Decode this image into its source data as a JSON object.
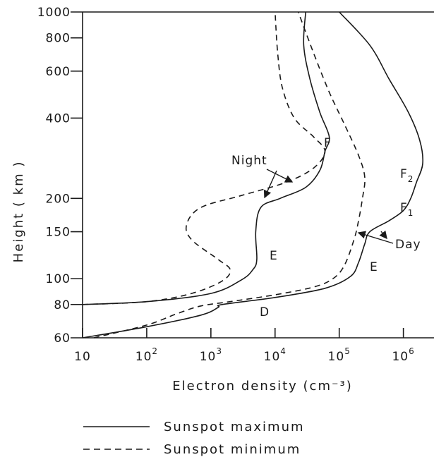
{
  "chart_data": {
    "type": "line",
    "xlabel": "Electron density (cm⁻³)",
    "ylabel": "Height ( km )",
    "xscale": "log",
    "yscale": "log",
    "xlim": [
      10,
      3000000
    ],
    "ylim": [
      60,
      1000
    ],
    "grid": false,
    "x_ticks": [
      {
        "value": 10,
        "base": "10",
        "exp": ""
      },
      {
        "value": 100,
        "base": "10",
        "exp": "2"
      },
      {
        "value": 1000,
        "base": "10",
        "exp": "3"
      },
      {
        "value": 10000,
        "base": "10",
        "exp": "4"
      },
      {
        "value": 100000,
        "base": "10",
        "exp": "5"
      },
      {
        "value": 1000000,
        "base": "10",
        "exp": "6"
      }
    ],
    "y_ticks": [
      {
        "value": 60,
        "label": "60"
      },
      {
        "value": 80,
        "label": "80"
      },
      {
        "value": 100,
        "label": "100"
      },
      {
        "value": 150,
        "label": "150"
      },
      {
        "value": 200,
        "label": "200"
      },
      {
        "value": 400,
        "label": "400"
      },
      {
        "value": 600,
        "label": "600"
      },
      {
        "value": 800,
        "label": "800"
      },
      {
        "value": 1000,
        "label": "1000"
      }
    ],
    "series": [
      {
        "name": "Sunspot maximum",
        "style": "solid",
        "points": [
          [
            10,
            80
          ],
          [
            100,
            82
          ],
          [
            1000,
            88
          ],
          [
            3000,
            99
          ],
          [
            4500,
            108
          ],
          [
            5200,
            118
          ],
          [
            5000,
            150
          ],
          [
            6000,
            185
          ],
          [
            12000,
            200
          ],
          [
            30000,
            220
          ],
          [
            50000,
            255
          ],
          [
            60000,
            300
          ],
          [
            70000,
            340
          ],
          [
            50000,
            420
          ],
          [
            35000,
            560
          ],
          [
            28000,
            750
          ],
          [
            30000,
            1000
          ]
        ]
      },
      {
        "name": "Sunspot minimum",
        "style": "dashed",
        "points": [
          [
            10,
            80
          ],
          [
            100,
            82
          ],
          [
            500,
            88
          ],
          [
            1500,
            98
          ],
          [
            2000,
            108
          ],
          [
            1300,
            118
          ],
          [
            500,
            140
          ],
          [
            420,
            160
          ],
          [
            700,
            185
          ],
          [
            3000,
            205
          ],
          [
            15000,
            230
          ],
          [
            40000,
            260
          ],
          [
            60000,
            300
          ],
          [
            40000,
            340
          ],
          [
            20000,
            400
          ],
          [
            13000,
            520
          ],
          [
            11000,
            700
          ],
          [
            10000,
            1000
          ]
        ]
      },
      {
        "name": "",
        "style": "dashed",
        "points": [
          [
            15,
            60
          ],
          [
            100,
            67
          ],
          [
            300,
            74
          ],
          [
            700,
            79
          ],
          [
            2000,
            82
          ],
          [
            10000,
            87
          ],
          [
            40000,
            93
          ],
          [
            80000,
            100
          ],
          [
            120000,
            112
          ],
          [
            170000,
            140
          ],
          [
            200000,
            165
          ],
          [
            230000,
            200
          ],
          [
            250000,
            240
          ],
          [
            200000,
            290
          ],
          [
            120000,
            380
          ],
          [
            70000,
            500
          ],
          [
            40000,
            700
          ],
          [
            23000,
            1000
          ]
        ]
      },
      {
        "name": "",
        "style": "solid",
        "points": [
          [
            10,
            60
          ],
          [
            100,
            66
          ],
          [
            700,
            73
          ],
          [
            1300,
            78
          ],
          [
            1500,
            80
          ],
          [
            10000,
            85
          ],
          [
            60000,
            92
          ],
          [
            150000,
            102
          ],
          [
            200000,
            115
          ],
          [
            250000,
            135
          ],
          [
            300000,
            150
          ],
          [
            600000,
            165
          ],
          [
            1000000,
            180
          ],
          [
            1300000,
            200
          ],
          [
            1600000,
            230
          ],
          [
            2000000,
            270
          ],
          [
            1800000,
            330
          ],
          [
            1200000,
            420
          ],
          [
            600000,
            560
          ],
          [
            300000,
            750
          ],
          [
            100000,
            1000
          ]
        ]
      }
    ],
    "annotations": [
      {
        "id": "night",
        "text": "Night"
      },
      {
        "id": "day",
        "text": "Day"
      },
      {
        "id": "f-night",
        "text": "F"
      },
      {
        "id": "e-night",
        "text": "E"
      },
      {
        "id": "f2",
        "text": "F",
        "sub": "2"
      },
      {
        "id": "f1",
        "text": "F",
        "sub": "1"
      },
      {
        "id": "e-day",
        "text": "E"
      },
      {
        "id": "d-day",
        "text": "D"
      }
    ]
  }
}
